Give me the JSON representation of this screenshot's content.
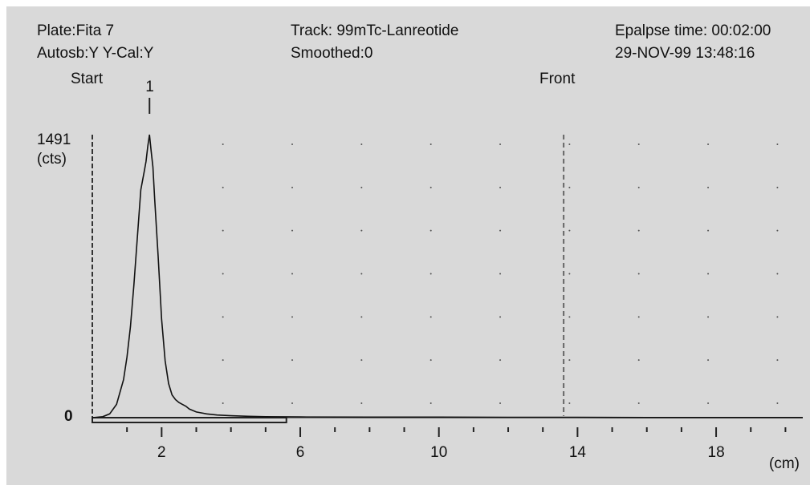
{
  "header": {
    "plate": "Plate:Fita 7",
    "autosb": "Autosb:Y  Y-Cal:Y",
    "track": "Track:  99mTc-Lanreotide",
    "smoothed": "Smoothed:0",
    "elapsed": "Epalpse time: 00:02:00",
    "datetime": "29-NOV-99   13:48:16"
  },
  "chart_data": {
    "type": "line",
    "x_unit_label": "(cm)",
    "y_unit_label": "(cts)",
    "y_max_label": "1491",
    "y_min_label": "0",
    "xlim": [
      0,
      20.5
    ],
    "ylim": [
      0,
      1491
    ],
    "x_ticks": [
      2,
      6,
      10,
      14,
      18
    ],
    "x_tick_labels": [
      "2",
      "6",
      "10",
      "14",
      "18"
    ],
    "start_label": "Start",
    "front_label": "Front",
    "front_position": 13.6,
    "peak_marker_label": "1",
    "peak_marker_position": 1.65,
    "grid": true,
    "series": [
      {
        "x": [
          0,
          0.3,
          0.5,
          0.7,
          0.9,
          1.0,
          1.1,
          1.2,
          1.3,
          1.4,
          1.5,
          1.55,
          1.6,
          1.65,
          1.7,
          1.75,
          1.8,
          1.9,
          2.0,
          2.1,
          2.2,
          2.3,
          2.4,
          2.5,
          2.6,
          2.7,
          2.8,
          3.0,
          3.3,
          3.6,
          4.0,
          4.5,
          5.0,
          6.0,
          8.0,
          10.0,
          12.0,
          14.0,
          16.0,
          18.0,
          20.5
        ],
        "y": [
          0,
          5,
          20,
          70,
          200,
          320,
          480,
          700,
          950,
          1200,
          1300,
          1350,
          1430,
          1491,
          1400,
          1320,
          1150,
          850,
          520,
          300,
          180,
          120,
          95,
          80,
          70,
          60,
          45,
          30,
          20,
          14,
          10,
          7,
          5,
          4,
          3,
          3,
          2,
          2,
          1,
          1,
          1
        ]
      }
    ]
  }
}
